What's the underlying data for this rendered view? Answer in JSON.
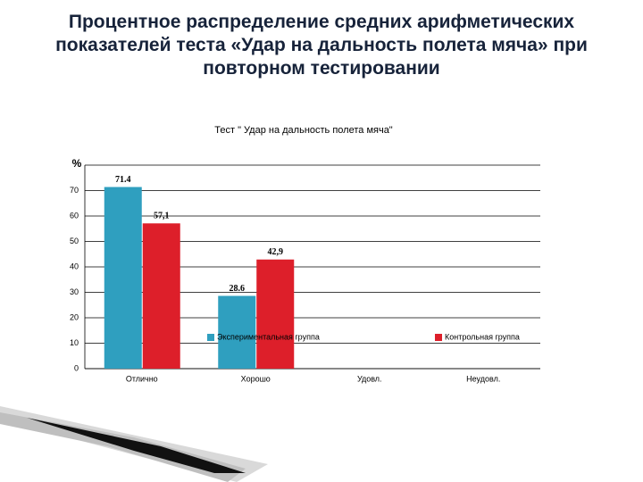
{
  "slide_title": "Процентное распределение средних арифметических показателей теста «Удар на дальность полета мяча» при повторном тестировании",
  "chart_data": {
    "type": "bar",
    "title": "Тест \" Удар на дальность полета мяча\"",
    "y_label": "%",
    "categories": [
      "Отлично",
      "Хорошо",
      "Удовл.",
      "Неудовл."
    ],
    "series": [
      {
        "name": "Экспериментальная группа",
        "color": "#2f9fbf",
        "values": [
          71.4,
          28.6,
          0,
          0
        ],
        "value_labels": [
          "71.4",
          "28.6",
          null,
          null
        ]
      },
      {
        "name": "Контрольная группа",
        "color": "#dd1f2a",
        "values": [
          57.1,
          42.9,
          0,
          0
        ],
        "value_labels": [
          "57,1",
          "42,9",
          null,
          null
        ]
      }
    ],
    "ylim": [
      0,
      80
    ],
    "yticks": [
      0,
      10,
      20,
      30,
      40,
      50,
      60,
      70
    ],
    "grid": true
  }
}
